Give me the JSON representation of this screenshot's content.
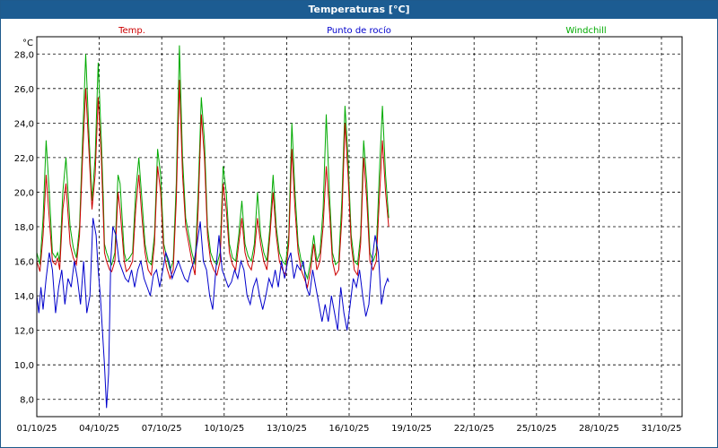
{
  "window": {
    "title": "Temperaturas [°C]"
  },
  "colors": {
    "titlebar": "#1c5c92",
    "temp": "#cc0000",
    "dew": "#0000cc",
    "windchill": "#00aa00",
    "grid": "#000000"
  },
  "chart_data": {
    "type": "line",
    "title": "Temperaturas [°C]",
    "ylabel": "°C",
    "xlabel": "",
    "ylim": [
      7.0,
      29.0
    ],
    "xlim": [
      "01/10/25",
      "01/11/25"
    ],
    "grid": true,
    "legend_position": "top",
    "y_ticks": [
      "8,0",
      "10,0",
      "12,0",
      "14,0",
      "16,0",
      "18,0",
      "20,0",
      "22,0",
      "24,0",
      "26,0",
      "28,0"
    ],
    "x_ticks": [
      "01/10/25",
      "04/10/25",
      "07/10/25",
      "10/10/25",
      "13/10/25",
      "16/10/25",
      "19/10/25",
      "22/10/25",
      "25/10/25",
      "28/10/25",
      "31/10/25"
    ],
    "series": [
      {
        "name": "Temp.",
        "color": "#cc0000",
        "x": [
          0.0,
          0.15,
          0.3,
          0.45,
          0.6,
          0.75,
          0.9,
          1.0,
          1.1,
          1.25,
          1.4,
          1.6,
          1.75,
          1.9,
          2.05,
          2.2,
          2.35,
          2.5,
          2.65,
          2.8,
          2.95,
          3.1,
          3.2,
          3.25,
          3.35,
          3.5,
          3.6,
          3.75,
          3.9,
          4.0,
          4.1,
          4.2,
          4.3,
          4.45,
          4.6,
          4.75,
          4.9,
          5.05,
          5.2,
          5.35,
          5.5,
          5.65,
          5.8,
          5.95,
          6.1,
          6.25,
          6.4,
          6.55,
          6.7,
          6.85,
          7.0,
          7.15,
          7.3,
          7.45,
          7.6,
          7.75,
          7.9,
          8.05,
          8.2,
          8.35,
          8.5,
          8.65,
          8.8,
          8.95,
          9.1,
          9.25,
          9.4,
          9.55,
          9.7,
          9.85,
          10.0,
          10.15,
          10.3,
          10.45,
          10.6,
          10.75,
          10.9,
          11.05,
          11.2,
          11.35,
          11.5,
          11.65,
          11.8,
          11.95,
          12.1,
          12.25,
          12.4,
          12.55,
          12.7,
          12.85,
          13.0,
          13.15,
          13.3,
          13.45,
          13.6,
          13.75,
          13.9,
          14.05,
          14.2,
          14.35,
          14.5,
          14.65,
          14.8,
          14.95,
          15.1,
          15.25,
          15.4,
          15.55,
          15.7,
          15.85,
          16.0,
          16.15,
          16.3,
          16.45,
          16.6,
          16.75,
          16.9
        ],
        "values": [
          16.0,
          15.4,
          17.5,
          21.0,
          18.5,
          16.0,
          15.8,
          16.2,
          15.5,
          19.0,
          20.5,
          17.0,
          16.2,
          15.8,
          17.5,
          22.0,
          26.0,
          22.5,
          19.0,
          21.0,
          25.5,
          22.0,
          18.5,
          16.5,
          16.0,
          15.5,
          15.4,
          16.0,
          20.0,
          19.0,
          17.5,
          16.0,
          15.4,
          15.6,
          16.0,
          19.0,
          21.0,
          18.5,
          16.5,
          15.5,
          15.2,
          17.0,
          21.5,
          20.0,
          16.5,
          15.6,
          15.0,
          15.5,
          19.5,
          26.5,
          21.0,
          18.0,
          17.0,
          16.0,
          15.2,
          19.0,
          24.5,
          22.0,
          17.5,
          16.0,
          15.5,
          15.2,
          16.0,
          20.5,
          19.0,
          16.5,
          15.8,
          15.5,
          17.0,
          18.5,
          16.5,
          15.8,
          15.5,
          16.5,
          18.5,
          17.0,
          16.0,
          15.5,
          17.5,
          20.0,
          17.5,
          16.0,
          15.5,
          15.2,
          17.0,
          22.5,
          19.0,
          16.5,
          15.5,
          15.0,
          14.5,
          15.5,
          17.0,
          15.5,
          16.0,
          18.0,
          21.5,
          19.0,
          16.0,
          15.2,
          15.5,
          18.5,
          24.0,
          21.0,
          17.0,
          15.5,
          15.2,
          17.0,
          22.0,
          19.5,
          16.0,
          15.5,
          16.0,
          19.5,
          23.0,
          20.0,
          18.0
        ]
      },
      {
        "name": "Punto de rocío",
        "color": "#0000cc",
        "x": [
          0.0,
          0.1,
          0.2,
          0.3,
          0.45,
          0.6,
          0.75,
          0.9,
          1.05,
          1.2,
          1.35,
          1.5,
          1.65,
          1.8,
          1.95,
          2.1,
          2.25,
          2.4,
          2.55,
          2.7,
          2.85,
          2.95,
          3.05,
          3.15,
          3.25,
          3.35,
          3.45,
          3.55,
          3.65,
          3.8,
          3.95,
          4.1,
          4.25,
          4.4,
          4.55,
          4.7,
          4.85,
          5.0,
          5.15,
          5.3,
          5.45,
          5.6,
          5.75,
          5.9,
          6.05,
          6.2,
          6.35,
          6.5,
          6.65,
          6.8,
          6.95,
          7.1,
          7.25,
          7.4,
          7.55,
          7.7,
          7.85,
          8.0,
          8.15,
          8.3,
          8.45,
          8.6,
          8.75,
          8.9,
          9.05,
          9.2,
          9.35,
          9.5,
          9.65,
          9.8,
          9.95,
          10.1,
          10.25,
          10.4,
          10.55,
          10.7,
          10.85,
          11.0,
          11.15,
          11.3,
          11.45,
          11.6,
          11.75,
          11.9,
          12.05,
          12.2,
          12.35,
          12.5,
          12.65,
          12.8,
          12.95,
          13.1,
          13.25,
          13.4,
          13.55,
          13.7,
          13.85,
          14.0,
          14.15,
          14.3,
          14.45,
          14.6,
          14.75,
          14.9,
          15.05,
          15.2,
          15.35,
          15.5,
          15.65,
          15.8,
          15.95,
          16.1,
          16.25,
          16.4,
          16.55,
          16.7,
          16.85,
          16.9
        ],
        "values": [
          14.0,
          13.0,
          14.5,
          13.2,
          15.0,
          16.5,
          15.5,
          13.0,
          14.5,
          15.5,
          13.5,
          15.0,
          14.5,
          16.0,
          15.0,
          13.5,
          16.0,
          13.0,
          14.0,
          18.5,
          17.5,
          15.5,
          14.0,
          12.0,
          10.0,
          7.5,
          9.5,
          16.0,
          18.0,
          17.5,
          16.0,
          15.5,
          15.0,
          14.8,
          15.5,
          14.5,
          15.5,
          16.0,
          15.0,
          14.5,
          14.0,
          15.2,
          15.5,
          14.5,
          15.5,
          16.5,
          16.0,
          15.0,
          15.5,
          16.0,
          15.5,
          15.0,
          14.8,
          15.5,
          16.0,
          17.0,
          18.3,
          16.0,
          15.5,
          14.0,
          13.2,
          15.5,
          17.5,
          15.5,
          15.0,
          14.5,
          14.8,
          15.5,
          15.0,
          16.0,
          15.5,
          14.0,
          13.5,
          14.5,
          15.0,
          14.0,
          13.2,
          14.0,
          15.0,
          14.5,
          15.5,
          14.5,
          16.0,
          15.0,
          16.0,
          16.5,
          15.0,
          15.8,
          15.5,
          16.0,
          14.5,
          14.0,
          15.5,
          14.5,
          13.5,
          12.5,
          13.5,
          12.5,
          14.0,
          13.0,
          12.0,
          14.5,
          13.0,
          12.0,
          13.5,
          15.0,
          14.5,
          15.5,
          14.0,
          12.8,
          13.5,
          16.0,
          17.5,
          16.5,
          13.5,
          14.5,
          15.0,
          14.8
        ]
      },
      {
        "name": "Windchill",
        "color": "#00aa00",
        "x": [
          0.0,
          0.15,
          0.3,
          0.45,
          0.6,
          0.75,
          0.9,
          1.0,
          1.1,
          1.25,
          1.4,
          1.6,
          1.75,
          1.9,
          2.05,
          2.2,
          2.35,
          2.5,
          2.65,
          2.8,
          2.95,
          3.1,
          3.2,
          3.25,
          3.35,
          3.5,
          3.6,
          3.75,
          3.9,
          4.0,
          4.1,
          4.2,
          4.3,
          4.45,
          4.6,
          4.75,
          4.9,
          5.05,
          5.2,
          5.35,
          5.5,
          5.65,
          5.8,
          5.95,
          6.1,
          6.25,
          6.4,
          6.55,
          6.7,
          6.85,
          7.0,
          7.15,
          7.3,
          7.45,
          7.6,
          7.75,
          7.9,
          8.05,
          8.2,
          8.35,
          8.5,
          8.65,
          8.8,
          8.95,
          9.1,
          9.25,
          9.4,
          9.55,
          9.7,
          9.85,
          10.0,
          10.15,
          10.3,
          10.45,
          10.6,
          10.75,
          10.9,
          11.05,
          11.2,
          11.35,
          11.5,
          11.65,
          11.8,
          11.95,
          12.1,
          12.25,
          12.4,
          12.55,
          12.7,
          12.85,
          13.0,
          13.15,
          13.3,
          13.45,
          13.6,
          13.75,
          13.9,
          14.05,
          14.2,
          14.35,
          14.5,
          14.65,
          14.8,
          14.95,
          15.1,
          15.25,
          15.4,
          15.55,
          15.7,
          15.85,
          16.0,
          16.15,
          16.3,
          16.45,
          16.6,
          16.75,
          16.9
        ],
        "values": [
          16.5,
          15.8,
          18.5,
          23.0,
          20.0,
          16.5,
          16.2,
          16.5,
          16.0,
          20.0,
          22.0,
          18.0,
          16.8,
          16.2,
          18.0,
          23.0,
          28.0,
          23.5,
          19.5,
          22.0,
          27.5,
          23.0,
          19.5,
          17.0,
          16.5,
          16.0,
          15.8,
          16.5,
          21.0,
          20.5,
          18.5,
          16.5,
          16.0,
          16.2,
          16.5,
          20.0,
          22.0,
          19.5,
          17.0,
          16.0,
          15.8,
          17.5,
          22.5,
          21.0,
          17.0,
          16.2,
          15.5,
          16.0,
          20.5,
          28.5,
          22.0,
          18.5,
          17.5,
          16.5,
          15.8,
          20.0,
          25.5,
          23.0,
          18.0,
          16.5,
          16.0,
          15.8,
          16.5,
          21.5,
          20.0,
          17.0,
          16.2,
          16.0,
          17.5,
          19.5,
          17.0,
          16.3,
          16.0,
          17.0,
          20.0,
          17.5,
          16.5,
          16.0,
          18.0,
          21.0,
          18.0,
          16.5,
          16.0,
          15.8,
          17.5,
          24.0,
          20.0,
          17.0,
          16.0,
          15.5,
          15.0,
          16.0,
          17.5,
          16.0,
          16.5,
          19.0,
          24.5,
          20.0,
          16.5,
          15.8,
          16.0,
          19.5,
          25.0,
          22.0,
          17.5,
          16.0,
          15.8,
          17.5,
          23.0,
          20.5,
          16.5,
          16.0,
          16.5,
          21.0,
          25.0,
          21.0,
          18.5
        ]
      }
    ]
  }
}
